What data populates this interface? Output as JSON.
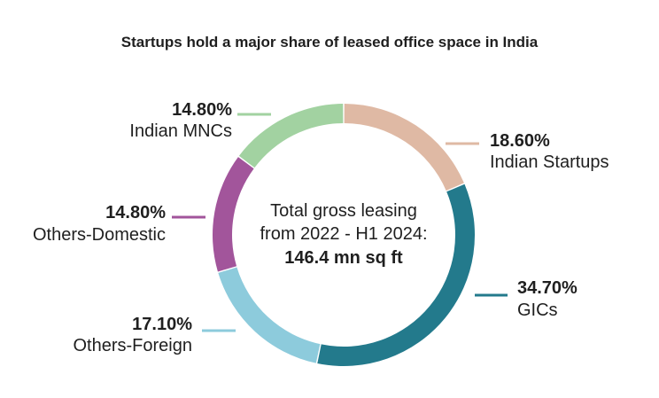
{
  "chart_data": {
    "type": "pie",
    "title": "Startups hold a major share of leased office space in India",
    "center": {
      "line1": "Total gross leasing",
      "line2": "from 2022 - H1 2024:",
      "line3": "146.4 mn sq ft"
    },
    "slices": [
      {
        "label": "Indian Startups",
        "value": 18.6,
        "value_label": "18.60%",
        "color": "#dfb9a4"
      },
      {
        "label": "GICs",
        "value": 34.7,
        "value_label": "34.70%",
        "color": "#237a8c"
      },
      {
        "label": "Others-Foreign",
        "value": 17.1,
        "value_label": "17.10%",
        "color": "#8dcbdc"
      },
      {
        "label": "Others-Domestic",
        "value": 14.8,
        "value_label": "14.80%",
        "color": "#a2559b"
      },
      {
        "label": "Indian MNCs",
        "value": 14.8,
        "value_label": "14.80%",
        "color": "#a2d2a1"
      }
    ]
  }
}
